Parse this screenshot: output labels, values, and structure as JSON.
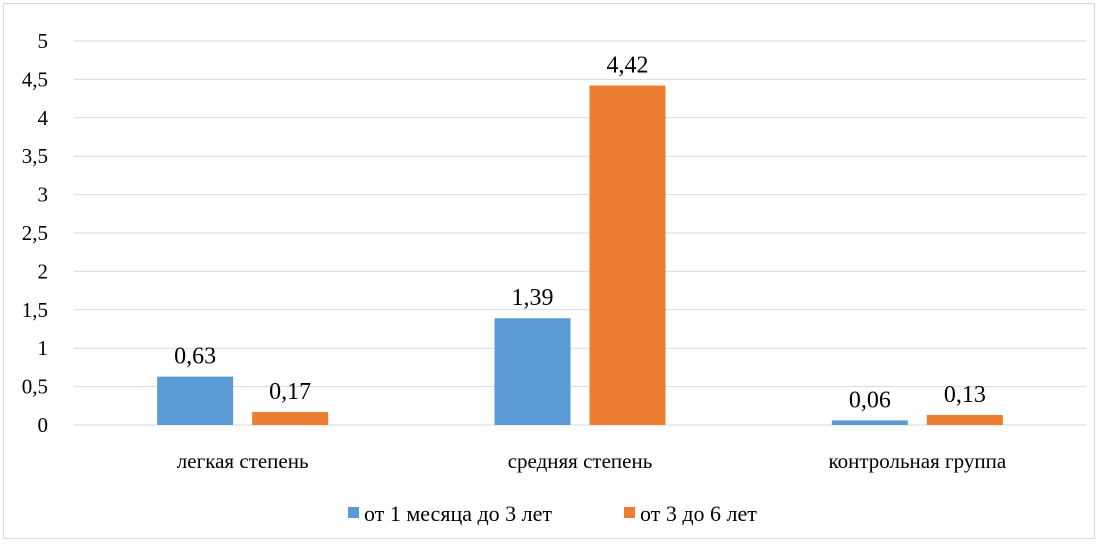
{
  "chart_data": {
    "type": "bar",
    "title": "",
    "xlabel": "",
    "ylabel": "",
    "categories": [
      "легкая степень",
      "средняя степень",
      "контрольная группа"
    ],
    "series": [
      {
        "name": "от 1 месяца до 3 лет",
        "values": [
          0.63,
          1.39,
          0.06
        ],
        "labels": [
          "0,63",
          "1,39",
          "0,06"
        ],
        "color": "#5b9bd5"
      },
      {
        "name": "от 3 до 6 лет",
        "values": [
          0.17,
          4.42,
          0.13
        ],
        "labels": [
          "0,17",
          "4,42",
          "0,13"
        ],
        "color": "#ed7d31"
      }
    ],
    "ylim": [
      0,
      5
    ],
    "yticks": [
      0,
      0.5,
      1,
      1.5,
      2,
      2.5,
      3,
      3.5,
      4,
      4.5,
      5
    ],
    "ytick_labels": [
      "0",
      "0,5",
      "1",
      "1,5",
      "2",
      "2,5",
      "3",
      "3,5",
      "4",
      "4,5",
      "5"
    ],
    "grid": true,
    "gridline_color": "#d9d9d9",
    "legend_position": "bottom"
  }
}
